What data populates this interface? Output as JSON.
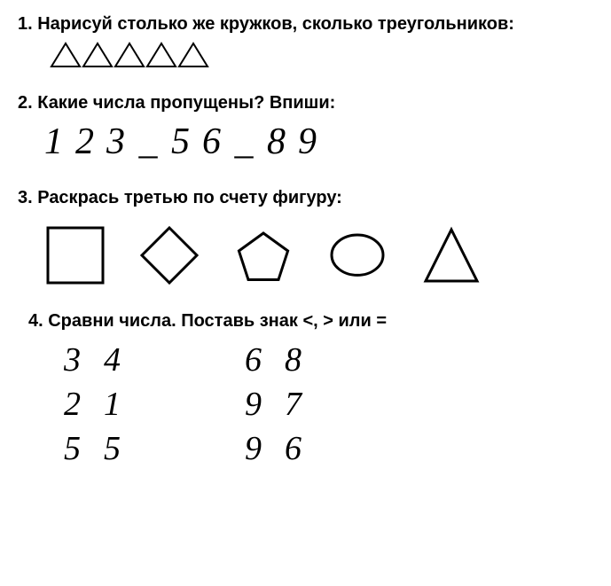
{
  "background_color": "#ffffff",
  "text_color": "#000000",
  "stroke_color": "#000000",
  "stroke_width": 2,
  "task1": {
    "title": "1. Нарисуй столько же кружков, сколько треугольников:",
    "triangle_count": 5,
    "triangle_w": 36,
    "triangle_h": 30
  },
  "task2": {
    "title": "2. Какие числа пропущены? Впиши:",
    "sequence": [
      "1",
      "2",
      "3",
      "_",
      "5",
      "6",
      "_",
      "8",
      "9"
    ],
    "font_size": 42
  },
  "task3": {
    "title": "3. Раскрась третью по счету фигуру:",
    "shapes": [
      "square",
      "diamond",
      "pentagon",
      "ellipse",
      "triangle"
    ],
    "shape_size": 70,
    "shape_stroke_width": 3
  },
  "task4": {
    "title": "4. Сравни числа. Поставь знак <, > или =",
    "col1": [
      [
        "3",
        "4"
      ],
      [
        "2",
        "1"
      ],
      [
        "5",
        "5"
      ]
    ],
    "col2": [
      [
        "6",
        "8"
      ],
      [
        "9",
        "7"
      ],
      [
        "9",
        "6"
      ]
    ],
    "font_size": 38
  }
}
